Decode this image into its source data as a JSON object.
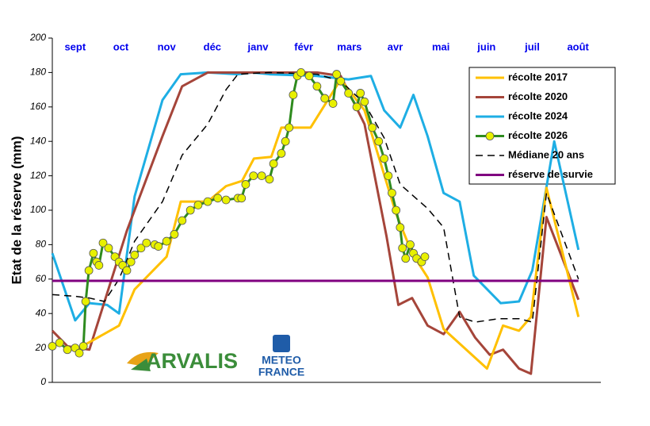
{
  "chart_data": {
    "type": "line",
    "ylabel": "Etat de la réserve (mm)",
    "categories": [
      "sept",
      "oct",
      "nov",
      "déc",
      "janv",
      "févr",
      "mars",
      "avr",
      "mai",
      "juin",
      "juil",
      "août"
    ],
    "xlim": [
      0,
      12
    ],
    "ylim": [
      0,
      200
    ],
    "yticks": [
      0,
      20,
      40,
      60,
      80,
      100,
      120,
      140,
      160,
      180,
      200
    ],
    "grid": false,
    "legend": "upper right",
    "logos": [
      "ARVALIS",
      "METEO",
      "FRANCE"
    ],
    "series": [
      {
        "name": "récolte 2017",
        "color": "#ffc000",
        "x": [
          0.59,
          1.46,
          1.8,
          2.5,
          2.81,
          3.4,
          3.8,
          4.15,
          4.41,
          4.79,
          5.01,
          5.65,
          6.31,
          6.83,
          7.52,
          7.87,
          8.21,
          8.56,
          9.51,
          9.86,
          10.21,
          10.47,
          10.81,
          11.51
        ],
        "values": [
          20,
          33,
          54,
          73,
          105,
          105,
          114,
          117,
          130,
          131,
          148,
          148,
          176,
          158,
          98,
          75,
          61,
          31,
          8,
          33,
          30,
          38,
          113,
          38
        ]
      },
      {
        "name": "récolte 2020",
        "color": "#a5453a",
        "x": [
          0,
          0.33,
          0.81,
          1.63,
          2.41,
          2.84,
          3.4,
          4.06,
          4.75,
          5.79,
          6.31,
          6.83,
          7.31,
          7.57,
          7.87,
          8.21,
          8.56,
          8.91,
          9.25,
          9.57,
          9.86,
          10.21,
          10.47,
          10.81,
          11.51
        ],
        "values": [
          30,
          21,
          19,
          88,
          143,
          172,
          180,
          180,
          180,
          180,
          178,
          150,
          85,
          45,
          49,
          33,
          28,
          41,
          26,
          16,
          19,
          8,
          5,
          96,
          48
        ]
      },
      {
        "name": "récolte 2024",
        "color": "#1eaee4",
        "x": [
          0,
          0.5,
          0.81,
          1.2,
          1.46,
          1.8,
          2.41,
          2.81,
          3.4,
          4.06,
          4.38,
          4.75,
          5.79,
          6.48,
          6.97,
          7.26,
          7.61,
          7.9,
          8.21,
          8.56,
          8.91,
          9.22,
          9.81,
          10.21,
          10.5,
          10.98,
          11.51
        ],
        "values": [
          75,
          36,
          46,
          45,
          40,
          108,
          164,
          179,
          180,
          179,
          180,
          179,
          178,
          176,
          178,
          158,
          148,
          167,
          143,
          110,
          105,
          62,
          46,
          47,
          65,
          140,
          77
        ]
      },
      {
        "name": "récolte 2026",
        "color": "#2e8b1e",
        "marker": "#e8f000",
        "x": [
          0,
          0.16,
          0.33,
          0.5,
          0.59,
          0.68,
          0.73,
          0.8,
          0.9,
          0.97,
          1.02,
          1.11,
          1.23,
          1.37,
          1.46,
          1.54,
          1.63,
          1.72,
          1.8,
          1.94,
          2.06,
          2.24,
          2.32,
          2.5,
          2.67,
          2.84,
          3.02,
          3.19,
          3.4,
          3.62,
          3.8,
          4.06,
          4.14,
          4.23,
          4.4,
          4.58,
          4.75,
          4.84,
          5.01,
          5.1,
          5.18,
          5.27,
          5.36,
          5.44,
          5.62,
          5.79,
          5.96,
          6.14,
          6.22,
          6.31,
          6.48,
          6.66,
          6.74,
          6.83,
          7.0,
          7.14,
          7.26,
          7.35,
          7.43,
          7.52,
          7.61,
          7.66,
          7.73,
          7.83,
          7.9,
          7.97,
          8.08,
          8.15
        ],
        "values": [
          21,
          23,
          19,
          20,
          17,
          21,
          47,
          65,
          75,
          70,
          68,
          81,
          78,
          73,
          70,
          68,
          65,
          70,
          74,
          78,
          81,
          80,
          79,
          82,
          86,
          94,
          100,
          103,
          105,
          107,
          106,
          107,
          107,
          115,
          120,
          120,
          118,
          127,
          133,
          140,
          148,
          167,
          178,
          180,
          178,
          172,
          165,
          162,
          179,
          175,
          168,
          160,
          168,
          163,
          148,
          140,
          130,
          120,
          110,
          100,
          90,
          78,
          72,
          80,
          75,
          72,
          70,
          73
        ]
      },
      {
        "name": "Médiane 20 ans",
        "color": "#000000",
        "dash": true,
        "x": [
          0,
          0.5,
          0.81,
          1.14,
          1.46,
          1.8,
          2.41,
          2.84,
          3.4,
          3.8,
          4.06,
          4.75,
          5.79,
          6.31,
          6.83,
          7.26,
          7.61,
          8.21,
          8.56,
          8.91,
          9.25,
          9.77,
          10.21,
          10.5,
          10.81,
          11.51
        ],
        "values": [
          51,
          50,
          49,
          47,
          60,
          82,
          105,
          132,
          150,
          170,
          179,
          180,
          179,
          175,
          162,
          142,
          115,
          101,
          90,
          38,
          35,
          37,
          37,
          35,
          110,
          60
        ]
      },
      {
        "name": "réserve de survie",
        "color": "#800080",
        "x": [
          0,
          11.51
        ],
        "values": [
          59,
          59
        ]
      }
    ]
  }
}
